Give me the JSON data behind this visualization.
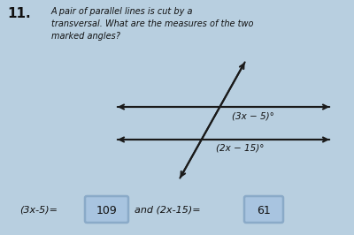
{
  "background_color": "#b8cfe0",
  "number_label": "11.",
  "question_text": "A pair of parallel lines is cut by a\ntransversal. What are the measures of the two\nmarked angles?",
  "angle1_label": "(3x − 5)°",
  "angle2_label": "(2x − 15)°",
  "answer1_prefix": "(3x-5)=",
  "answer1_value": "109",
  "answer2_prefix": "and (2x-15)=",
  "answer2_value": "61",
  "line_color": "#1a1a1a",
  "text_color": "#111111",
  "box_fill": "#a8c4e0",
  "box_edge": "#8aaac8"
}
